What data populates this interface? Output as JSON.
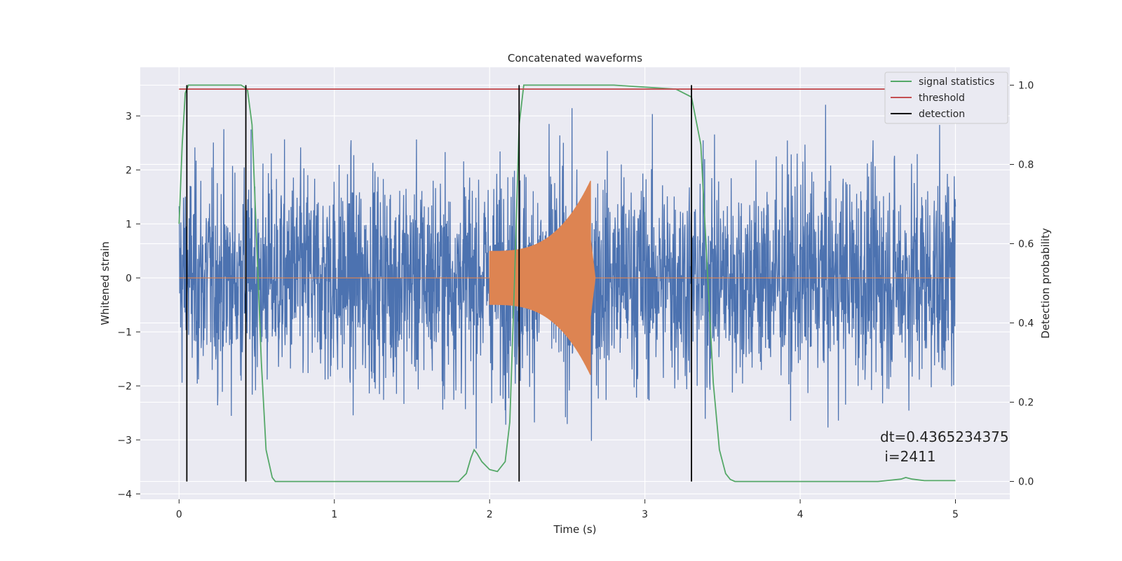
{
  "chart_data": {
    "type": "line",
    "title": "Concatenated waveforms",
    "xlabel": "Time (s)",
    "ylabel": "Whitened strain",
    "ylabel_right": "Detection probability",
    "xlim": [
      -0.25,
      5.35
    ],
    "ylim": [
      -4.1,
      3.9
    ],
    "ylim_right": [
      -0.045,
      1.045
    ],
    "x_ticks": [
      0,
      1,
      2,
      3,
      4,
      5
    ],
    "y_ticks": [
      -4,
      -3,
      -2,
      -1,
      0,
      1,
      2,
      3
    ],
    "y_ticks_right": [
      0.0,
      0.2,
      0.4,
      0.6,
      0.8,
      1.0
    ],
    "x_tick_labels": [
      "0",
      "1",
      "2",
      "3",
      "4",
      "5"
    ],
    "y_tick_labels": [
      "−4",
      "−3",
      "−2",
      "−1",
      "0",
      "1",
      "2",
      "3"
    ],
    "y_tick_labels_right": [
      "0.0",
      "0.2",
      "0.4",
      "0.6",
      "0.8",
      "1.0"
    ],
    "grid": true,
    "legend_position": "top-right",
    "noise": {
      "color": "#4c72b0",
      "x_range": [
        0,
        5
      ],
      "typical_amplitude": 1.0,
      "max_abs": 3.6
    },
    "injected_signal": {
      "color": "#dd8452",
      "x_start": 2.0,
      "x_end": 2.65,
      "start_amplitude": 0.5,
      "peak_amplitude": 1.8,
      "end_amplitude": 0.0
    },
    "series": [
      {
        "name": "signal statistics",
        "color": "#55a868",
        "axis": "right",
        "x": [
          0,
          0.02,
          0.04,
          0.06,
          0.1,
          0.2,
          0.4,
          0.44,
          0.47,
          0.5,
          0.53,
          0.56,
          0.6,
          0.62,
          0.65,
          1.0,
          1.5,
          1.8,
          1.85,
          1.88,
          1.9,
          1.92,
          1.95,
          2.0,
          2.05,
          2.1,
          2.13,
          2.16,
          2.19,
          2.22,
          2.3,
          2.8,
          3.2,
          3.3,
          3.36,
          3.4,
          3.44,
          3.48,
          3.52,
          3.55,
          3.58,
          4.0,
          4.5,
          4.65,
          4.68,
          4.72,
          4.8,
          5.0
        ],
        "y": [
          0.65,
          0.85,
          0.98,
          1.0,
          1.0,
          1.0,
          1.0,
          0.99,
          0.9,
          0.6,
          0.3,
          0.08,
          0.01,
          0.0,
          0.0,
          0.0,
          0.0,
          0.0,
          0.02,
          0.06,
          0.08,
          0.07,
          0.05,
          0.03,
          0.025,
          0.05,
          0.15,
          0.5,
          0.9,
          1.0,
          1.0,
          1.0,
          0.99,
          0.97,
          0.85,
          0.55,
          0.25,
          0.08,
          0.02,
          0.005,
          0.0,
          0.0,
          0.0,
          0.006,
          0.01,
          0.006,
          0.002,
          0.002
        ]
      },
      {
        "name": "threshold",
        "color": "#c44e52",
        "axis": "right",
        "x": [
          0,
          5
        ],
        "y": [
          0.99,
          0.99
        ]
      },
      {
        "name": "detection",
        "color": "#000000",
        "axis": "right",
        "x_positions": [
          0.05,
          0.43,
          2.19,
          3.3
        ],
        "y_range": [
          0,
          1
        ]
      }
    ],
    "annotations": [
      "dt=0.4365234375",
      " i=2411"
    ]
  }
}
